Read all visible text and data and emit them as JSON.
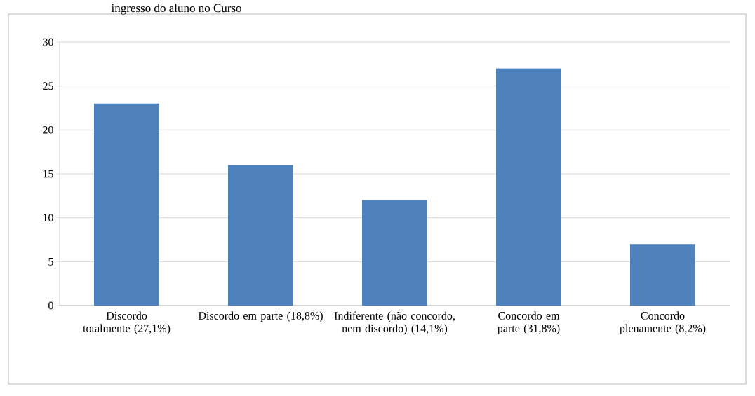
{
  "chart_data": {
    "type": "bar",
    "title": "ingresso do aluno no Curso",
    "categories": [
      "Discordo totalmente (27,1%)",
      "Discordo em parte (18,8%)",
      "Indiferente (não concordo, nem discordo) (14,1%)",
      "Concordo em parte (31,8%)",
      "Concordo plenamente (8,2%)"
    ],
    "values": [
      23,
      16,
      12,
      27,
      7
    ],
    "color": "#4f81bd",
    "ylim": [
      0,
      30
    ],
    "yticks": [
      0,
      5,
      10,
      15,
      20,
      25,
      30
    ],
    "grid": "y"
  }
}
